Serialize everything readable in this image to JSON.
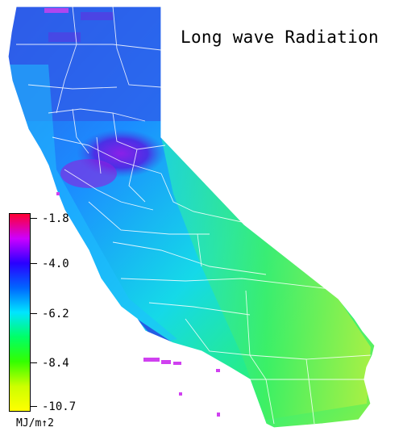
{
  "title": "Long wave Radiation",
  "legend": {
    "ticks": [
      "-1.8",
      "-4.0",
      "-6.2",
      "-8.4",
      "-10.7"
    ],
    "unit": "MJ/m↑2",
    "colors": [
      "#ff0033",
      "#cc00ff",
      "#2a00ff",
      "#0066ff",
      "#00e5ff",
      "#00ff66",
      "#33ff00",
      "#ccff00",
      "#ffff00"
    ]
  },
  "map_colors": {
    "north": "#2f63e8",
    "central_valley": "#6a2ee6",
    "coast": "#1fb8ff",
    "sierra": "#25dfe0",
    "east": "#3aff3a",
    "southeast": "#a6f53a",
    "south_coast": "#1f3fe0",
    "hotspot": "#e040f0"
  }
}
